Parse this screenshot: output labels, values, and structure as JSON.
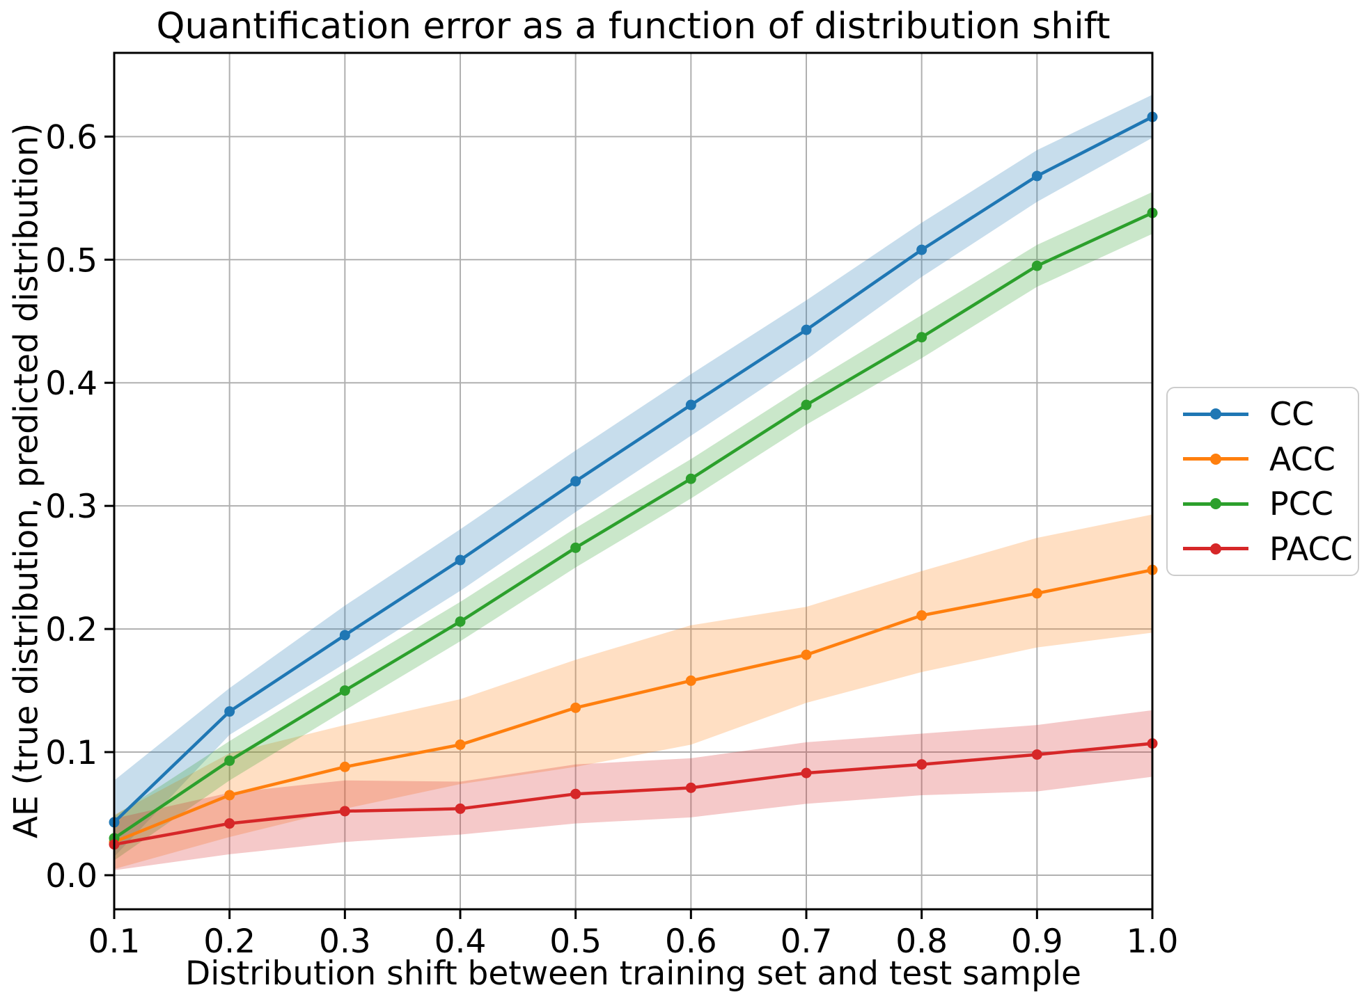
{
  "chart_data": {
    "type": "line",
    "title": "Quantification error as a function of distribution shift",
    "xlabel": "Distribution shift between training set and test sample",
    "ylabel": "AE (true distribution, predicted distribution)",
    "x": [
      0.1,
      0.2,
      0.3,
      0.4,
      0.5,
      0.6,
      0.7,
      0.8,
      0.9,
      1.0
    ],
    "x_ticks": [
      0.1,
      0.2,
      0.3,
      0.4,
      0.5,
      0.6,
      0.7,
      0.8,
      0.9,
      1.0
    ],
    "x_tick_labels": [
      "0.1",
      "0.2",
      "0.3",
      "0.4",
      "0.5",
      "0.6",
      "0.7",
      "0.8",
      "0.9",
      "1.0"
    ],
    "y_ticks": [
      0.0,
      0.1,
      0.2,
      0.3,
      0.4,
      0.5,
      0.6
    ],
    "y_tick_labels": [
      "0.0",
      "0.1",
      "0.2",
      "0.3",
      "0.4",
      "0.5",
      "0.6"
    ],
    "xlim": [
      0.1,
      1.0
    ],
    "ylim": [
      -0.0277,
      0.668
    ],
    "grid": true,
    "legend_position": "outside-right",
    "band_opacity": 0.25,
    "colors": {
      "background": "#ffffff",
      "grid": "#b0b0b0",
      "spine": "#000000",
      "text": "#000000"
    },
    "series": [
      {
        "name": "CC",
        "color": "#1f77b4",
        "values": [
          0.043,
          0.133,
          0.195,
          0.256,
          0.32,
          0.382,
          0.443,
          0.508,
          0.568,
          0.616
        ],
        "band_lower": [
          0.015,
          0.114,
          0.172,
          0.231,
          0.295,
          0.357,
          0.419,
          0.486,
          0.547,
          0.599
        ],
        "band_upper": [
          0.077,
          0.152,
          0.219,
          0.281,
          0.345,
          0.407,
          0.467,
          0.53,
          0.589,
          0.634
        ]
      },
      {
        "name": "ACC",
        "color": "#ff7f0e",
        "values": [
          0.027,
          0.065,
          0.088,
          0.106,
          0.136,
          0.158,
          0.179,
          0.211,
          0.229,
          0.248
        ],
        "band_lower": [
          0.005,
          0.031,
          0.054,
          0.074,
          0.088,
          0.106,
          0.14,
          0.165,
          0.185,
          0.197
        ],
        "band_upper": [
          0.049,
          0.099,
          0.122,
          0.143,
          0.175,
          0.203,
          0.218,
          0.247,
          0.274,
          0.293
        ]
      },
      {
        "name": "PCC",
        "color": "#2ca02c",
        "values": [
          0.03,
          0.093,
          0.15,
          0.206,
          0.266,
          0.322,
          0.382,
          0.437,
          0.495,
          0.538
        ],
        "band_lower": [
          0.012,
          0.077,
          0.134,
          0.19,
          0.25,
          0.306,
          0.366,
          0.42,
          0.478,
          0.521
        ],
        "band_upper": [
          0.048,
          0.109,
          0.166,
          0.222,
          0.282,
          0.338,
          0.398,
          0.455,
          0.512,
          0.555
        ]
      },
      {
        "name": "PACC",
        "color": "#d62728",
        "values": [
          0.025,
          0.042,
          0.052,
          0.054,
          0.066,
          0.071,
          0.083,
          0.09,
          0.098,
          0.107
        ],
        "band_lower": [
          0.004,
          0.017,
          0.027,
          0.033,
          0.042,
          0.047,
          0.058,
          0.065,
          0.068,
          0.08
        ],
        "band_upper": [
          0.046,
          0.067,
          0.077,
          0.076,
          0.09,
          0.095,
          0.108,
          0.115,
          0.122,
          0.134
        ]
      }
    ]
  }
}
